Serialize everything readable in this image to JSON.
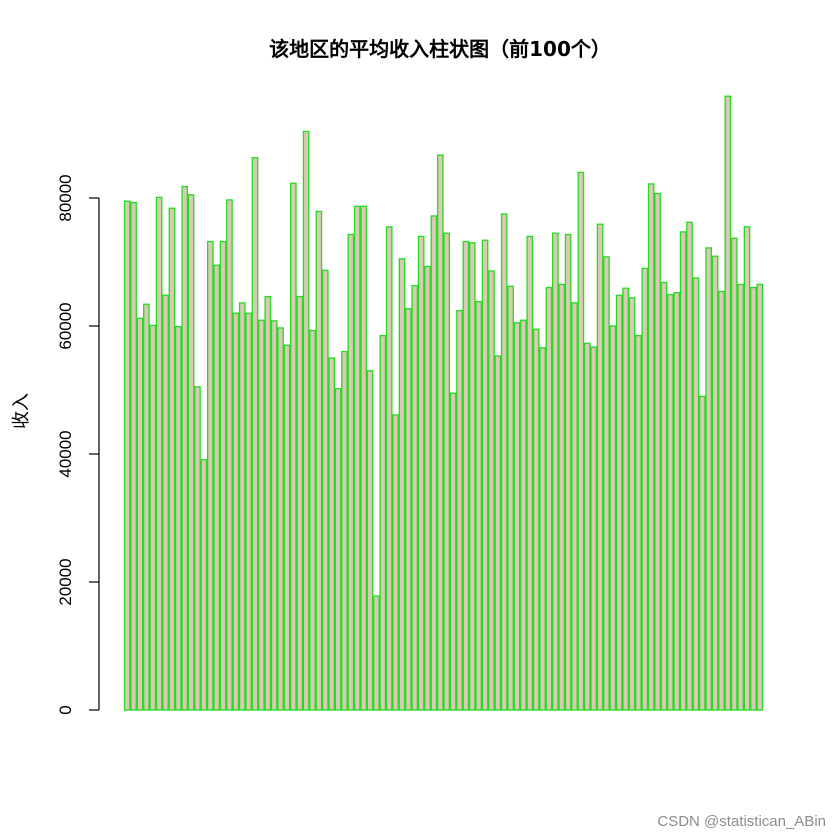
{
  "chart_data": {
    "type": "bar",
    "title": "该地区的平均收入柱状图（前100个）",
    "xlabel": "",
    "ylabel": "收入",
    "ylim": [
      0,
      95000
    ],
    "yticks": [
      0,
      20000,
      40000,
      60000,
      80000
    ],
    "ytick_labels": [
      "0",
      "20000",
      "40000",
      "60000",
      "80000"
    ],
    "grid": false,
    "legend": "none",
    "bar_fill": "#dcc8b4",
    "bar_border": "#22dd22",
    "values": [
      79500,
      79300,
      61200,
      63400,
      60100,
      80100,
      64800,
      78400,
      59900,
      81800,
      80500,
      50500,
      39100,
      73200,
      69500,
      73200,
      79700,
      62000,
      63600,
      62000,
      86300,
      60900,
      64600,
      60800,
      59700,
      57000,
      82300,
      64600,
      90400,
      59300,
      77900,
      68700,
      55000,
      50200,
      56000,
      74300,
      78700,
      78700,
      53000,
      17800,
      58500,
      75500,
      46100,
      70500,
      62700,
      66300,
      74000,
      69300,
      77200,
      86700,
      74500,
      49500,
      62400,
      73200,
      73000,
      63800,
      73400,
      68600,
      55300,
      77500,
      66200,
      60500,
      60900,
      74000,
      59500,
      56600,
      66000,
      74500,
      66500,
      74300,
      63600,
      84000,
      57300,
      56700,
      75900,
      70800,
      60000,
      64800,
      65900,
      64400,
      58500,
      69000,
      82200,
      80700,
      66800,
      64900,
      65200,
      74700,
      76200,
      67500,
      49000,
      72200,
      70900,
      65400,
      95900,
      73700,
      66500,
      75500,
      66000,
      66500
    ]
  },
  "watermark": "CSDN @statistican_ABin"
}
